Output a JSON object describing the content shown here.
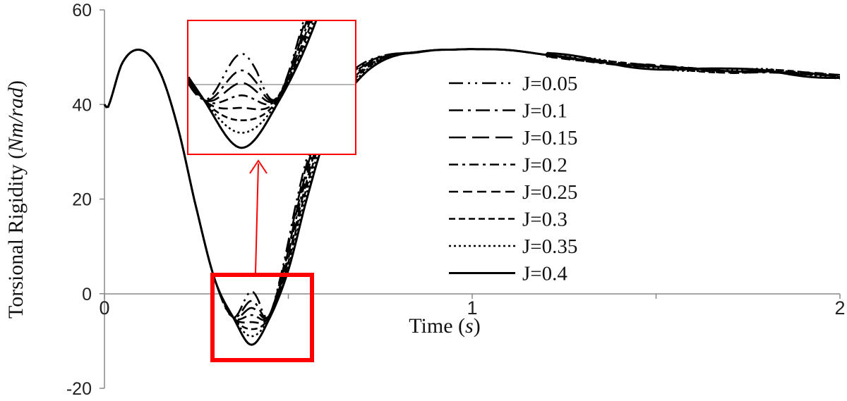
{
  "chart_data": {
    "type": "line",
    "title": "",
    "xlabel": {
      "main": "Time (",
      "unit": "s",
      "close": ")"
    },
    "ylabel": {
      "main": "Torsional Rigidity (",
      "unit": "Nm/rad",
      "close": ")"
    },
    "xlim": [
      0,
      2
    ],
    "ylim": [
      -20,
      60
    ],
    "x_ticks": [
      0,
      1,
      2
    ],
    "x_tick_labels": [
      "0",
      "1",
      "2"
    ],
    "y_ticks": [
      -20,
      0,
      20,
      40,
      60
    ],
    "y_tick_labels": [
      "-20",
      "0",
      "20",
      "40",
      "60"
    ],
    "legend_position": "right",
    "series": [
      {
        "name": "J=0.05",
        "dash": "long-dot-dot",
        "min": 0.5
      },
      {
        "name": "J=0.1",
        "dash": "long-dot",
        "min": -1.5
      },
      {
        "name": "J=0.15",
        "dash": "long-dash",
        "min": -3.0
      },
      {
        "name": "J=0.2",
        "dash": "dash-dot",
        "min": -4.5
      },
      {
        "name": "J=0.25",
        "dash": "dash",
        "min": -6.0
      },
      {
        "name": "J=0.3",
        "dash": "short-dash",
        "min": -7.5
      },
      {
        "name": "J=0.35",
        "dash": "dot",
        "min": -9.0
      },
      {
        "name": "J=0.4",
        "dash": "solid",
        "min": -10.8
      }
    ],
    "curve_keypoints": {
      "x": [
        0.0,
        0.01,
        0.05,
        0.1,
        0.15,
        0.2,
        0.25,
        0.3,
        0.35,
        0.4,
        0.45,
        0.5,
        0.55,
        0.6,
        0.65,
        0.7,
        0.75,
        0.8,
        0.85,
        0.9,
        0.95,
        1.0,
        1.1,
        1.2,
        1.3,
        1.4,
        1.5,
        1.6,
        1.7,
        1.8,
        1.9,
        2.0
      ],
      "y": [
        40,
        39.5,
        49,
        51.5,
        47,
        35,
        18,
        3,
        -5,
        "min",
        -5,
        5,
        20,
        33,
        41,
        46,
        49,
        50.5,
        51,
        51.5,
        51.6,
        51.7,
        51.5,
        50.5,
        49.5,
        48.5,
        48,
        47.5,
        47,
        47,
        46.5,
        46
      ]
    },
    "annotations": [
      {
        "type": "zoom-box",
        "target": "trough",
        "x_range": [
          0.3,
          0.57
        ],
        "y_range": [
          -14,
          4
        ]
      },
      {
        "type": "arrow",
        "from": "zoom-box",
        "to": "inset"
      },
      {
        "type": "inset",
        "x_range": [
          0.33,
          0.55
        ],
        "y_range": [
          -11.5,
          4.5
        ],
        "reference_line_y": 0
      }
    ]
  },
  "colors": {
    "curve": "#000000",
    "axis": "#888888",
    "annotation": "#ff0000"
  }
}
